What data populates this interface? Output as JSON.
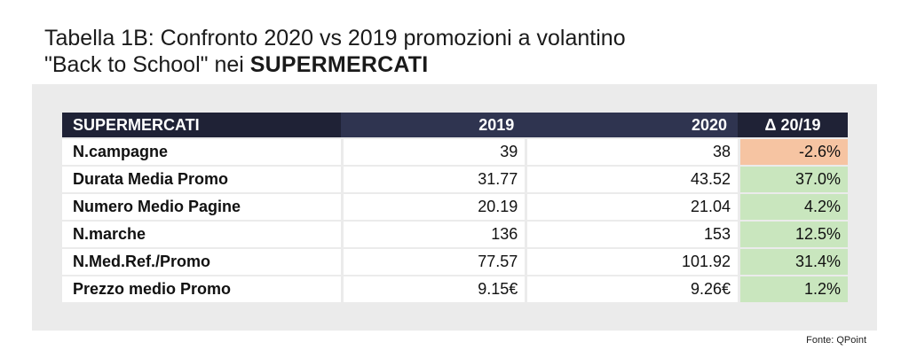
{
  "title": {
    "line1_prefix": "Tabella 1B",
    "line1_rest": ":  Confronto 2020 vs 2019 promozioni a volantino",
    "line2_quoted": "\"Back to School\"",
    "line2_mid": " nei ",
    "line2_caps": "SUPERMERCATI"
  },
  "table": {
    "headers": [
      "SUPERMERCATI",
      "2019",
      "2020",
      "Δ 20/19"
    ],
    "rows": [
      {
        "label": "N.campagne",
        "v2019": "39",
        "v2020": "38",
        "delta": "-2.6%",
        "delta_color": "#f6c4a2"
      },
      {
        "label": "Durata Media Promo",
        "v2019": "31.77",
        "v2020": "43.52",
        "delta": "37.0%",
        "delta_color": "#c9e6be"
      },
      {
        "label": "Numero Medio Pagine",
        "v2019": "20.19",
        "v2020": "21.04",
        "delta": "4.2%",
        "delta_color": "#c9e6be"
      },
      {
        "label": "N.marche",
        "v2019": "136",
        "v2020": "153",
        "delta": "12.5%",
        "delta_color": "#c9e6be"
      },
      {
        "label": "N.Med.Ref./Promo",
        "v2019": "77.57",
        "v2020": "101.92",
        "delta": "31.4%",
        "delta_color": "#c9e6be"
      },
      {
        "label": "Prezzo medio Promo",
        "v2019": "9.15€",
        "v2020": "9.26€",
        "delta": "1.2%",
        "delta_color": "#c9e6be"
      }
    ]
  },
  "source": "Fonte: QPoint",
  "colors": {
    "header_dark": "#1f2236",
    "header_mid": "#2f3450",
    "panel_bg": "#ebebeb",
    "negative": "#f6c4a2",
    "positive": "#c9e6be"
  }
}
